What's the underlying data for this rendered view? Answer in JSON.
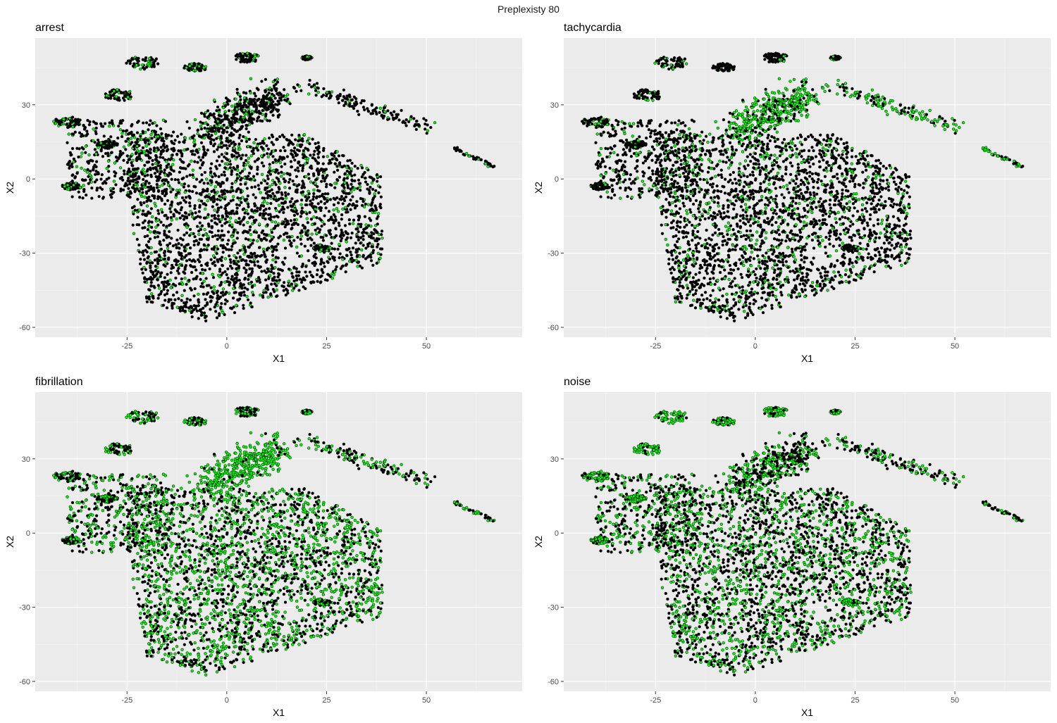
{
  "suptitle": "Preplexisty 80",
  "colors": {
    "panel_background": "#EBEBEB",
    "grid_major": "#FFFFFF",
    "grid_minor": "#F5F5F5",
    "point_fill_other": "#000000",
    "point_fill_class": "#00FF00",
    "point_outline": "#000000",
    "tick_text": "#4D4D4D"
  },
  "chart_data": [
    {
      "type": "scatter",
      "title": "arrest",
      "xlabel": "X1",
      "ylabel": "X2",
      "xlim": [
        -48,
        74
      ],
      "ylim": [
        -64,
        57
      ],
      "xticks": [
        -25,
        0,
        25,
        50
      ],
      "yticks": [
        -60,
        -30,
        0,
        30
      ],
      "highlight_level": "low",
      "grid": true,
      "legend": "none"
    },
    {
      "type": "scatter",
      "title": "tachycardia",
      "xlabel": "X1",
      "ylabel": "X2",
      "xlim": [
        -48,
        74
      ],
      "ylim": [
        -64,
        57
      ],
      "xticks": [
        -25,
        0,
        25,
        50
      ],
      "yticks": [
        -60,
        -30,
        0,
        30
      ],
      "highlight_level": "medium",
      "grid": true,
      "legend": "none"
    },
    {
      "type": "scatter",
      "title": "fibrillation",
      "xlabel": "X1",
      "ylabel": "X2",
      "xlim": [
        -48,
        74
      ],
      "ylim": [
        -64,
        57
      ],
      "xticks": [
        -25,
        0,
        25,
        50
      ],
      "yticks": [
        -60,
        -30,
        0,
        30
      ],
      "highlight_level": "high",
      "grid": true,
      "legend": "none"
    },
    {
      "type": "scatter",
      "title": "noise",
      "xlabel": "X1",
      "ylabel": "X2",
      "xlim": [
        -48,
        74
      ],
      "ylim": [
        -64,
        57
      ],
      "xticks": [
        -25,
        0,
        25,
        50
      ],
      "yticks": [
        -60,
        -30,
        0,
        30
      ],
      "highlight_level": "medium",
      "grid": true,
      "legend": "none"
    }
  ]
}
